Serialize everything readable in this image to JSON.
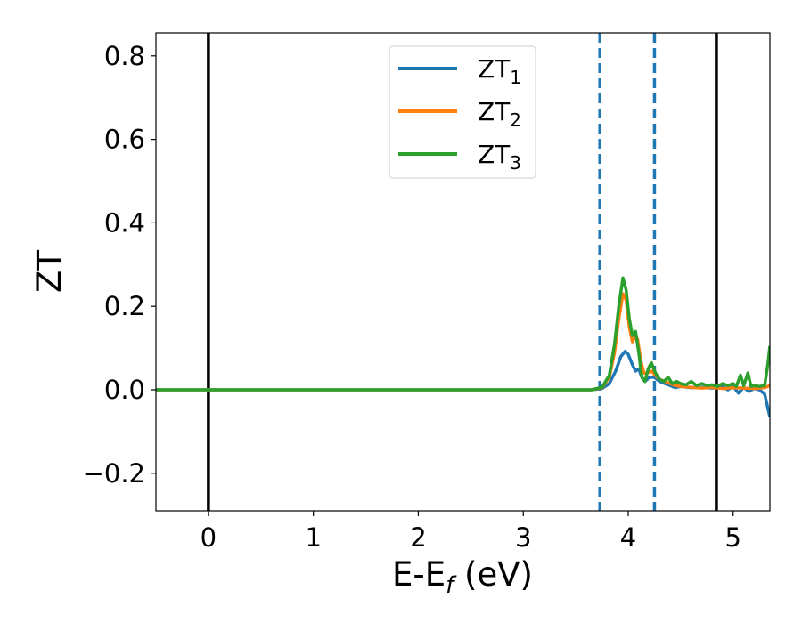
{
  "chart_data": {
    "type": "line",
    "xlabel": {
      "main": "E-E",
      "sub": "f",
      "unit": " (eV)"
    },
    "ylabel": "ZT",
    "xlim": [
      -0.5,
      5.35
    ],
    "ylim": [
      -0.29,
      0.855
    ],
    "xticks": [
      0,
      1,
      2,
      3,
      4,
      5
    ],
    "yticks": [
      -0.2,
      0.0,
      0.2,
      0.4,
      0.6,
      0.8
    ],
    "ytick_labels": [
      "−0.2",
      "0.0",
      "0.2",
      "0.4",
      "0.6",
      "0.8"
    ],
    "xtick_labels": [
      "0",
      "1",
      "2",
      "3",
      "4",
      "5"
    ],
    "grid": false,
    "legend_position": "top-center",
    "vlines": [
      {
        "x": 0.0,
        "style": "solid",
        "color": "#000000"
      },
      {
        "x": 4.84,
        "style": "solid",
        "color": "#000000"
      },
      {
        "x": 3.73,
        "style": "dashed",
        "color": "#1f77b4"
      },
      {
        "x": 4.25,
        "style": "dashed",
        "color": "#1f77b4"
      }
    ],
    "series": [
      {
        "name": "ZT",
        "subscript": "1",
        "color": "#1f77b4",
        "points": [
          [
            -0.5,
            0
          ],
          [
            3.65,
            0
          ],
          [
            3.75,
            0.003
          ],
          [
            3.82,
            0.015
          ],
          [
            3.88,
            0.045
          ],
          [
            3.93,
            0.08
          ],
          [
            3.97,
            0.092
          ],
          [
            4.0,
            0.085
          ],
          [
            4.04,
            0.06
          ],
          [
            4.07,
            0.045
          ],
          [
            4.1,
            0.05
          ],
          [
            4.13,
            0.03
          ],
          [
            4.16,
            0.02
          ],
          [
            4.2,
            0.03
          ],
          [
            4.25,
            0.03
          ],
          [
            4.3,
            0.02
          ],
          [
            4.35,
            0.015
          ],
          [
            4.4,
            0.01
          ],
          [
            4.45,
            0.005
          ],
          [
            4.5,
            0.008
          ],
          [
            4.6,
            0.005
          ],
          [
            4.7,
            0.006
          ],
          [
            4.8,
            0.004
          ],
          [
            4.9,
            0.008
          ],
          [
            4.95,
            0.0
          ],
          [
            5.0,
            0.008
          ],
          [
            5.05,
            -0.008
          ],
          [
            5.1,
            0.006
          ],
          [
            5.15,
            -0.004
          ],
          [
            5.2,
            0.003
          ],
          [
            5.25,
            0.0
          ],
          [
            5.3,
            -0.01
          ],
          [
            5.35,
            -0.065
          ]
        ]
      },
      {
        "name": "ZT",
        "subscript": "2",
        "color": "#ff7f0e",
        "points": [
          [
            -0.5,
            0
          ],
          [
            3.65,
            0
          ],
          [
            3.75,
            0.005
          ],
          [
            3.82,
            0.03
          ],
          [
            3.87,
            0.09
          ],
          [
            3.91,
            0.17
          ],
          [
            3.95,
            0.23
          ],
          [
            3.98,
            0.215
          ],
          [
            4.01,
            0.15
          ],
          [
            4.04,
            0.115
          ],
          [
            4.07,
            0.13
          ],
          [
            4.09,
            0.12
          ],
          [
            4.12,
            0.07
          ],
          [
            4.15,
            0.04
          ],
          [
            4.18,
            0.04
          ],
          [
            4.22,
            0.045
          ],
          [
            4.26,
            0.035
          ],
          [
            4.3,
            0.025
          ],
          [
            4.35,
            0.02
          ],
          [
            4.4,
            0.015
          ],
          [
            4.45,
            0.01
          ],
          [
            4.5,
            0.008
          ],
          [
            4.6,
            0.006
          ],
          [
            4.7,
            0.004
          ],
          [
            4.8,
            0.006
          ],
          [
            4.9,
            0.003
          ],
          [
            5.0,
            0.005
          ],
          [
            5.1,
            0.004
          ],
          [
            5.2,
            0.003
          ],
          [
            5.3,
            0.005
          ],
          [
            5.35,
            0.01
          ]
        ]
      },
      {
        "name": "ZT",
        "subscript": "3",
        "color": "#2ca02c",
        "points": [
          [
            -0.5,
            0
          ],
          [
            3.65,
            0
          ],
          [
            3.75,
            0.006
          ],
          [
            3.82,
            0.035
          ],
          [
            3.87,
            0.11
          ],
          [
            3.91,
            0.2
          ],
          [
            3.95,
            0.268
          ],
          [
            3.98,
            0.24
          ],
          [
            4.01,
            0.17
          ],
          [
            4.04,
            0.13
          ],
          [
            4.07,
            0.14
          ],
          [
            4.1,
            0.09
          ],
          [
            4.13,
            0.03
          ],
          [
            4.16,
            0.02
          ],
          [
            4.19,
            0.05
          ],
          [
            4.22,
            0.065
          ],
          [
            4.26,
            0.04
          ],
          [
            4.3,
            0.025
          ],
          [
            4.34,
            0.02
          ],
          [
            4.38,
            0.03
          ],
          [
            4.42,
            0.015
          ],
          [
            4.46,
            0.02
          ],
          [
            4.5,
            0.015
          ],
          [
            4.55,
            0.012
          ],
          [
            4.6,
            0.02
          ],
          [
            4.65,
            0.01
          ],
          [
            4.7,
            0.015
          ],
          [
            4.75,
            0.01
          ],
          [
            4.8,
            0.012
          ],
          [
            4.85,
            0.008
          ],
          [
            4.9,
            0.015
          ],
          [
            4.95,
            0.01
          ],
          [
            5.0,
            0.015
          ],
          [
            5.03,
            0.008
          ],
          [
            5.07,
            0.035
          ],
          [
            5.1,
            0.01
          ],
          [
            5.14,
            0.04
          ],
          [
            5.17,
            0.008
          ],
          [
            5.2,
            0.01
          ],
          [
            5.25,
            0.008
          ],
          [
            5.3,
            0.01
          ],
          [
            5.33,
            0.06
          ],
          [
            5.35,
            0.105
          ]
        ]
      }
    ]
  }
}
